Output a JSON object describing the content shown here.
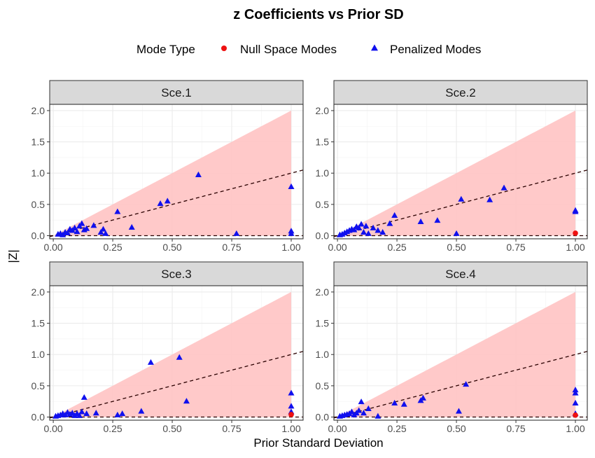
{
  "chart_data": {
    "type": "scatter",
    "title": "z Coefficients vs Prior SD",
    "xlabel": "Prior Standard Deviation",
    "ylabel": "|Z|",
    "xlim": [
      -0.015,
      1.05
    ],
    "ylim": [
      -0.05,
      2.1
    ],
    "x_ticks": [
      0,
      0.25,
      0.5,
      0.75,
      1
    ],
    "x_tick_labels": [
      "0.00",
      "0.25",
      "0.50",
      "0.75",
      "1.00"
    ],
    "y_ticks": [
      0,
      0.5,
      1,
      1.5,
      2
    ],
    "y_tick_labels": [
      "0.0",
      "0.5",
      "1.0",
      "1.5",
      "2.0"
    ],
    "legend": {
      "title": "Mode Type",
      "position": "top",
      "entries": [
        {
          "label": "Null Space Modes",
          "shape": "circle",
          "color": "#ee1111"
        },
        {
          "label": "Penalized Modes",
          "shape": "triangle",
          "color": "#1010ee"
        }
      ]
    },
    "reference_lines": {
      "dashed_slope": 1,
      "dashed_zero": 0,
      "shaded_region_upper_slope": 2
    },
    "colors": {
      "shade": "#ffc6c6",
      "grid": "#ebebeb",
      "strip": "#d9d9d9",
      "dashed": "#2a0000"
    },
    "facets": [
      {
        "label": "Sce.1",
        "null_modes": [],
        "penalized_modes": [
          [
            0.02,
            0.02
          ],
          [
            0.03,
            0.03
          ],
          [
            0.04,
            0.01
          ],
          [
            0.05,
            0.05
          ],
          [
            0.06,
            0.04
          ],
          [
            0.07,
            0.1
          ],
          [
            0.08,
            0.08
          ],
          [
            0.09,
            0.12
          ],
          [
            0.1,
            0.06
          ],
          [
            0.11,
            0.15
          ],
          [
            0.12,
            0.19
          ],
          [
            0.13,
            0.09
          ],
          [
            0.14,
            0.11
          ],
          [
            0.17,
            0.16
          ],
          [
            0.2,
            0.05
          ],
          [
            0.21,
            0.1
          ],
          [
            0.22,
            0.03
          ],
          [
            0.27,
            0.38
          ],
          [
            0.33,
            0.13
          ],
          [
            0.45,
            0.51
          ],
          [
            0.48,
            0.55
          ],
          [
            0.61,
            0.97
          ],
          [
            0.77,
            0.03
          ],
          [
            1.0,
            0.78
          ],
          [
            1.0,
            0.07
          ],
          [
            1.0,
            0.03
          ]
        ]
      },
      {
        "label": "Sce.2",
        "null_modes": [
          [
            1.0,
            0.04
          ]
        ],
        "penalized_modes": [
          [
            0.01,
            0.01
          ],
          [
            0.02,
            0.02
          ],
          [
            0.03,
            0.04
          ],
          [
            0.04,
            0.06
          ],
          [
            0.05,
            0.08
          ],
          [
            0.06,
            0.1
          ],
          [
            0.07,
            0.09
          ],
          [
            0.08,
            0.14
          ],
          [
            0.09,
            0.12
          ],
          [
            0.1,
            0.18
          ],
          [
            0.11,
            0.05
          ],
          [
            0.12,
            0.15
          ],
          [
            0.13,
            0.03
          ],
          [
            0.15,
            0.12
          ],
          [
            0.17,
            0.08
          ],
          [
            0.19,
            0.05
          ],
          [
            0.22,
            0.19
          ],
          [
            0.24,
            0.32
          ],
          [
            0.35,
            0.22
          ],
          [
            0.42,
            0.24
          ],
          [
            0.5,
            0.03
          ],
          [
            0.52,
            0.58
          ],
          [
            0.64,
            0.57
          ],
          [
            0.7,
            0.76
          ],
          [
            1.0,
            0.4
          ],
          [
            1.0,
            0.38
          ]
        ]
      },
      {
        "label": "Sce.3",
        "null_modes": [
          [
            1.0,
            0.04
          ]
        ],
        "penalized_modes": [
          [
            0.01,
            0.01
          ],
          [
            0.02,
            0.02
          ],
          [
            0.03,
            0.03
          ],
          [
            0.04,
            0.05
          ],
          [
            0.05,
            0.03
          ],
          [
            0.06,
            0.07
          ],
          [
            0.07,
            0.04
          ],
          [
            0.08,
            0.06
          ],
          [
            0.09,
            0.02
          ],
          [
            0.1,
            0.05
          ],
          [
            0.11,
            0.02
          ],
          [
            0.12,
            0.08
          ],
          [
            0.13,
            0.31
          ],
          [
            0.14,
            0.05
          ],
          [
            0.18,
            0.06
          ],
          [
            0.27,
            0.03
          ],
          [
            0.29,
            0.05
          ],
          [
            0.37,
            0.09
          ],
          [
            0.41,
            0.87
          ],
          [
            0.53,
            0.95
          ],
          [
            0.56,
            0.25
          ],
          [
            1.0,
            0.38
          ],
          [
            1.0,
            0.17
          ],
          [
            1.0,
            0.08
          ]
        ]
      },
      {
        "label": "Sce.4",
        "null_modes": [
          [
            1.0,
            0.03
          ]
        ],
        "penalized_modes": [
          [
            0.01,
            0.01
          ],
          [
            0.02,
            0.02
          ],
          [
            0.03,
            0.03
          ],
          [
            0.04,
            0.04
          ],
          [
            0.05,
            0.05
          ],
          [
            0.06,
            0.08
          ],
          [
            0.07,
            0.03
          ],
          [
            0.08,
            0.06
          ],
          [
            0.09,
            0.1
          ],
          [
            0.1,
            0.24
          ],
          [
            0.11,
            0.06
          ],
          [
            0.13,
            0.13
          ],
          [
            0.17,
            0.01
          ],
          [
            0.24,
            0.22
          ],
          [
            0.28,
            0.2
          ],
          [
            0.35,
            0.26
          ],
          [
            0.36,
            0.3
          ],
          [
            0.51,
            0.09
          ],
          [
            0.54,
            0.52
          ],
          [
            1.0,
            0.43
          ],
          [
            1.0,
            0.38
          ],
          [
            1.0,
            0.22
          ],
          [
            1.0,
            0.05
          ]
        ]
      }
    ]
  }
}
